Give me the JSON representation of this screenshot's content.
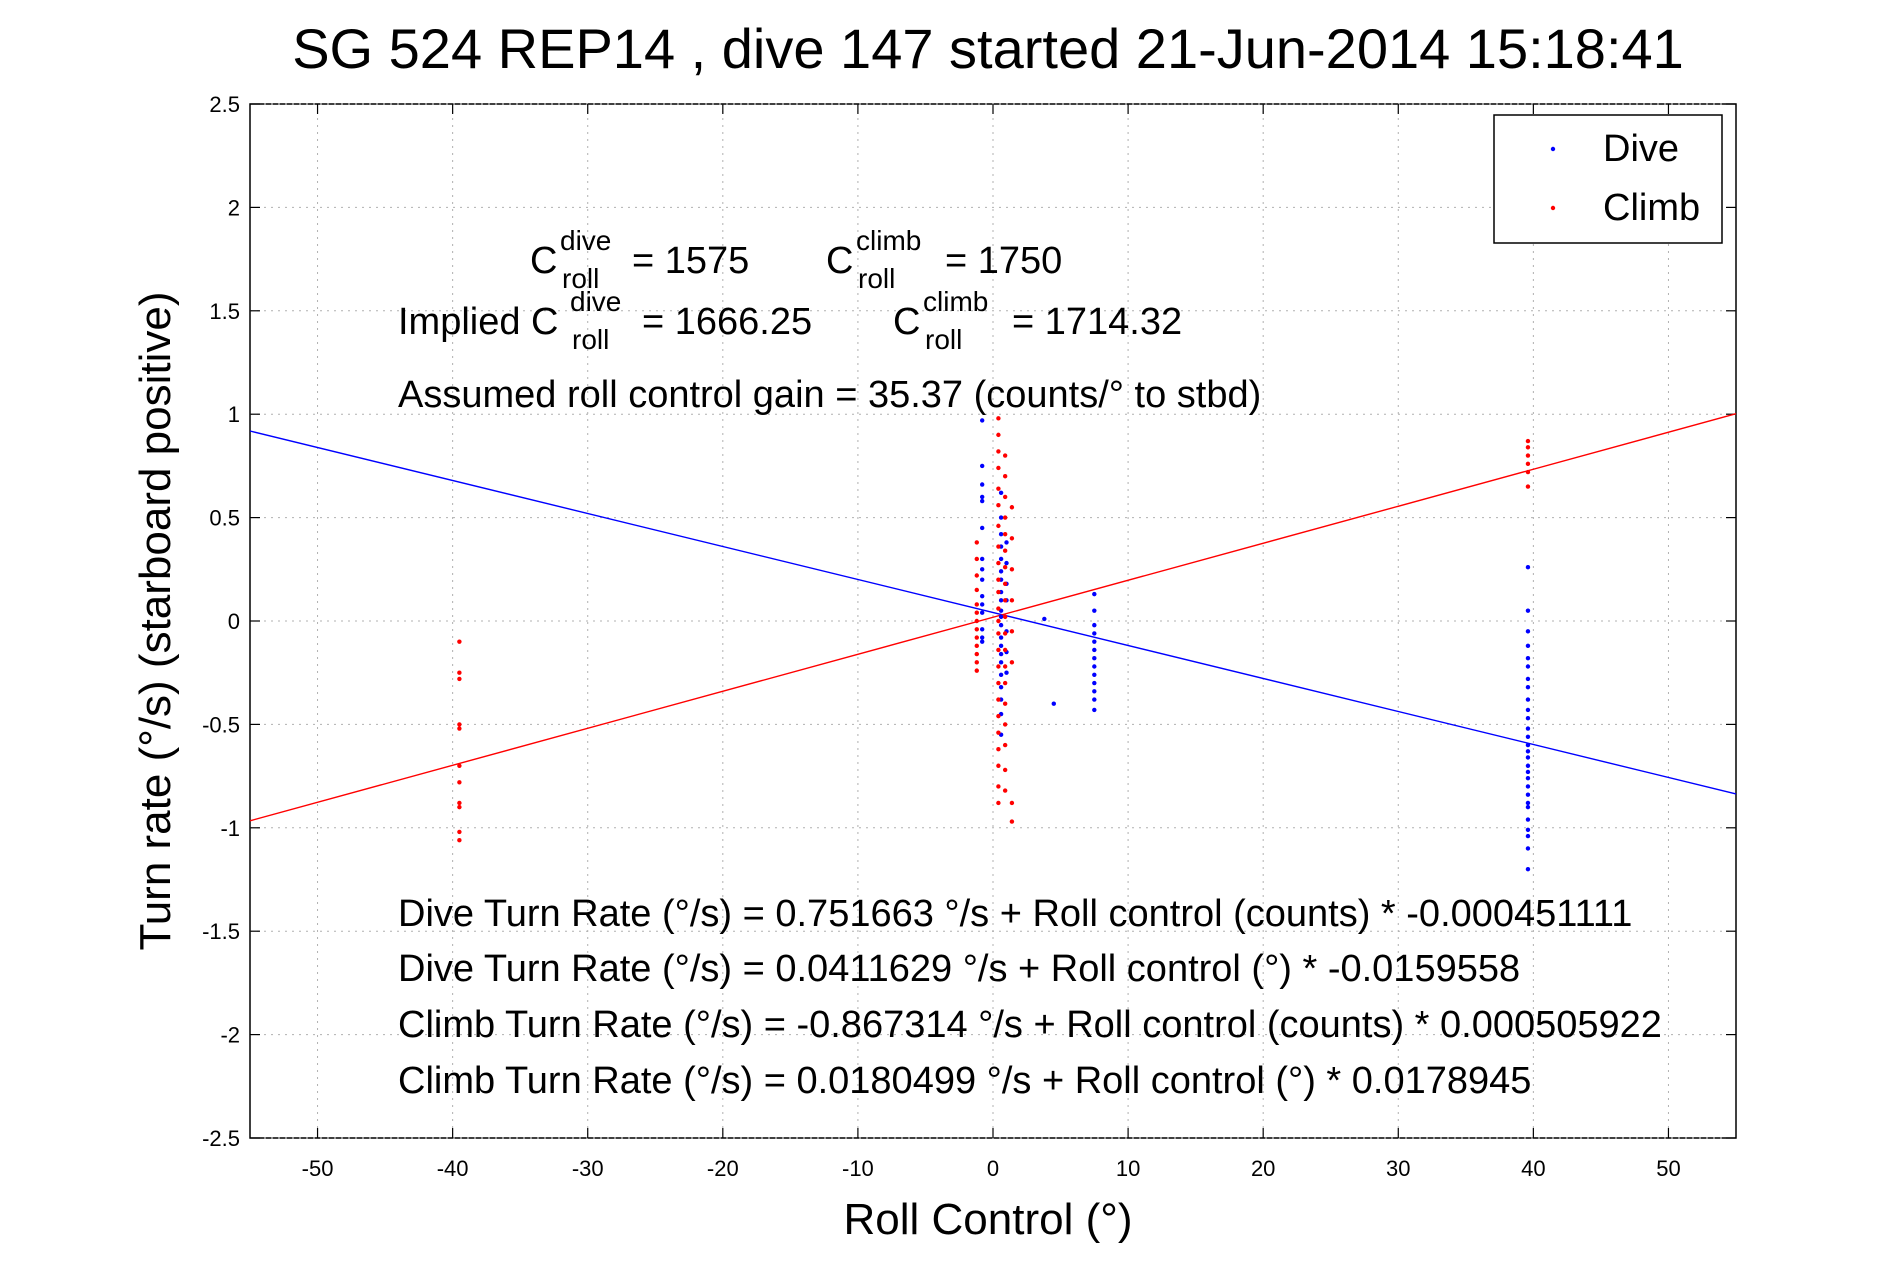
{
  "chart_data": {
    "type": "scatter",
    "title": "SG 524   REP14  , dive 147 started 21-Jun-2014 15:18:41",
    "xlabel": "Roll Control (°)",
    "ylabel": "Turn rate (°/s) (starboard positive)",
    "xlim": [
      -55,
      55
    ],
    "ylim": [
      -2.5,
      2.5
    ],
    "xticks": [
      "-50",
      "-40",
      "-30",
      "-20",
      "-10",
      "0",
      "10",
      "20",
      "30",
      "40",
      "50"
    ],
    "yticks": [
      "-2.5",
      "-2",
      "-1.5",
      "-1",
      "-0.5",
      "0",
      "0.5",
      "1",
      "1.5",
      "2",
      "2.5"
    ],
    "xtick_values": [
      -50,
      -40,
      -30,
      -20,
      -10,
      0,
      10,
      20,
      30,
      40,
      50
    ],
    "ytick_values": [
      -2.5,
      -2,
      -1.5,
      -1,
      -0.5,
      0,
      0.5,
      1,
      1.5,
      2,
      2.5
    ],
    "grid": true,
    "legend_placement": "top-right",
    "legend": [
      {
        "label": "Dive",
        "color": "#0000ff"
      },
      {
        "label": "Climb",
        "color": "#ff0000"
      }
    ],
    "annotations": {
      "c_roll_prefix": "C",
      "sup_dive": "dive",
      "sup_climb": "climb",
      "sub_roll": "roll",
      "c_dive_value": "= 1575",
      "c_climb_value": "= 1750",
      "implied_prefix": "Implied C",
      "implied_dive_value": "= 1666.25",
      "implied_climb_value": "= 1714.32",
      "gain": "Assumed roll control gain = 35.37 (counts/° to stbd)",
      "eq1": "Dive Turn Rate (°/s) = 0.751663 °/s + Roll control (counts) * -0.000451111",
      "eq2": "Dive Turn Rate (°/s) = 0.0411629 °/s + Roll control (°) * -0.0159558",
      "eq3": "Climb Turn Rate (°/s) = -0.867314 °/s + Roll control (counts) * 0.000505922",
      "eq4": "Climb Turn Rate (°/s) = 0.0180499 °/s + Roll control (°) * 0.0178945"
    },
    "fit_lines": [
      {
        "name": "Dive",
        "intercept": 0.0411629,
        "slope": -0.0159558,
        "color": "#0000ff"
      },
      {
        "name": "Climb",
        "intercept": 0.0180499,
        "slope": 0.0178945,
        "color": "#ff0000"
      }
    ],
    "series": [
      {
        "name": "Dive",
        "color": "#0000ff",
        "points": [
          [
            -0.8,
            0.97
          ],
          [
            -0.8,
            0.75
          ],
          [
            -0.8,
            0.6
          ],
          [
            -0.8,
            0.58
          ],
          [
            -0.8,
            0.45
          ],
          [
            -0.8,
            0.3
          ],
          [
            -0.8,
            0.25
          ],
          [
            -0.8,
            0.12
          ],
          [
            -0.8,
            0.08
          ],
          [
            -0.8,
            0.04
          ],
          [
            -0.8,
            -0.08
          ],
          [
            -0.8,
            -0.1
          ],
          [
            -0.8,
            0.66
          ],
          [
            -0.8,
            0.2
          ],
          [
            -0.8,
            -0.04
          ],
          [
            0.6,
            0.62
          ],
          [
            0.6,
            0.5
          ],
          [
            0.6,
            0.42
          ],
          [
            0.6,
            0.36
          ],
          [
            0.6,
            0.3
          ],
          [
            0.6,
            0.24
          ],
          [
            0.6,
            0.2
          ],
          [
            0.6,
            0.14
          ],
          [
            0.6,
            0.1
          ],
          [
            0.6,
            0.05
          ],
          [
            0.6,
            0.02
          ],
          [
            0.6,
            -0.02
          ],
          [
            0.6,
            -0.08
          ],
          [
            0.6,
            -0.12
          ],
          [
            0.6,
            -0.16
          ],
          [
            0.6,
            -0.2
          ],
          [
            0.6,
            -0.26
          ],
          [
            0.6,
            -0.32
          ],
          [
            0.6,
            -0.38
          ],
          [
            0.6,
            -0.45
          ],
          [
            0.6,
            -0.55
          ],
          [
            1.0,
            0.38
          ],
          [
            1.0,
            0.28
          ],
          [
            1.0,
            0.18
          ],
          [
            1.0,
            0.1
          ],
          [
            1.0,
            -0.05
          ],
          [
            1.0,
            -0.15
          ],
          [
            1.0,
            -0.25
          ],
          [
            3.8,
            0.01
          ],
          [
            4.5,
            -0.4
          ],
          [
            7.5,
            0.13
          ],
          [
            7.5,
            0.05
          ],
          [
            7.5,
            -0.02
          ],
          [
            7.5,
            -0.06
          ],
          [
            7.5,
            -0.1
          ],
          [
            7.5,
            -0.14
          ],
          [
            7.5,
            -0.18
          ],
          [
            7.5,
            -0.22
          ],
          [
            7.5,
            -0.26
          ],
          [
            7.5,
            -0.3
          ],
          [
            7.5,
            -0.34
          ],
          [
            7.5,
            -0.38
          ],
          [
            7.5,
            -0.43
          ],
          [
            39.6,
            0.26
          ],
          [
            39.6,
            0.05
          ],
          [
            39.6,
            -0.05
          ],
          [
            39.6,
            -0.12
          ],
          [
            39.6,
            -0.18
          ],
          [
            39.6,
            -0.22
          ],
          [
            39.6,
            -0.28
          ],
          [
            39.6,
            -0.32
          ],
          [
            39.6,
            -0.38
          ],
          [
            39.6,
            -0.43
          ],
          [
            39.6,
            -0.47
          ],
          [
            39.6,
            -0.52
          ],
          [
            39.6,
            -0.56
          ],
          [
            39.6,
            -0.6
          ],
          [
            39.6,
            -0.63
          ],
          [
            39.6,
            -0.66
          ],
          [
            39.6,
            -0.7
          ],
          [
            39.6,
            -0.73
          ],
          [
            39.6,
            -0.76
          ],
          [
            39.6,
            -0.8
          ],
          [
            39.6,
            -0.84
          ],
          [
            39.6,
            -0.88
          ],
          [
            39.6,
            -0.9
          ],
          [
            39.6,
            -0.96
          ],
          [
            39.6,
            -1.01
          ],
          [
            39.6,
            -1.04
          ],
          [
            39.6,
            -1.1
          ],
          [
            39.6,
            -1.2
          ]
        ]
      },
      {
        "name": "Climb",
        "color": "#ff0000",
        "points": [
          [
            -39.5,
            -0.1
          ],
          [
            -39.5,
            -0.25
          ],
          [
            -39.5,
            -0.28
          ],
          [
            -39.5,
            -0.5
          ],
          [
            -39.5,
            -0.52
          ],
          [
            -39.5,
            -0.7
          ],
          [
            -39.5,
            -0.78
          ],
          [
            -39.5,
            -0.88
          ],
          [
            -39.5,
            -0.9
          ],
          [
            -39.5,
            -1.02
          ],
          [
            -39.5,
            -1.06
          ],
          [
            -1.2,
            0.38
          ],
          [
            -1.2,
            0.3
          ],
          [
            -1.2,
            0.22
          ],
          [
            -1.2,
            0.15
          ],
          [
            -1.2,
            0.08
          ],
          [
            -1.2,
            0.04
          ],
          [
            -1.2,
            0.0
          ],
          [
            -1.2,
            -0.04
          ],
          [
            -1.2,
            -0.08
          ],
          [
            -1.2,
            -0.12
          ],
          [
            -1.2,
            -0.16
          ],
          [
            -1.2,
            -0.2
          ],
          [
            -1.2,
            -0.24
          ],
          [
            0.4,
            0.98
          ],
          [
            0.4,
            0.9
          ],
          [
            0.4,
            0.82
          ],
          [
            0.4,
            0.74
          ],
          [
            0.4,
            0.64
          ],
          [
            0.4,
            0.56
          ],
          [
            0.4,
            0.46
          ],
          [
            0.4,
            0.36
          ],
          [
            0.4,
            0.28
          ],
          [
            0.4,
            0.2
          ],
          [
            0.4,
            0.14
          ],
          [
            0.4,
            0.06
          ],
          [
            0.4,
            0.0
          ],
          [
            0.4,
            -0.06
          ],
          [
            0.4,
            -0.14
          ],
          [
            0.4,
            -0.22
          ],
          [
            0.4,
            -0.3
          ],
          [
            0.4,
            -0.38
          ],
          [
            0.4,
            -0.46
          ],
          [
            0.4,
            -0.54
          ],
          [
            0.4,
            -0.62
          ],
          [
            0.4,
            -0.7
          ],
          [
            0.4,
            -0.8
          ],
          [
            0.4,
            -0.88
          ],
          [
            0.9,
            0.8
          ],
          [
            0.9,
            0.7
          ],
          [
            0.9,
            0.6
          ],
          [
            0.9,
            0.5
          ],
          [
            0.9,
            0.42
          ],
          [
            0.9,
            0.34
          ],
          [
            0.9,
            0.26
          ],
          [
            0.9,
            0.18
          ],
          [
            0.9,
            0.1
          ],
          [
            0.9,
            0.02
          ],
          [
            0.9,
            -0.06
          ],
          [
            0.9,
            -0.14
          ],
          [
            0.9,
            -0.22
          ],
          [
            0.9,
            -0.3
          ],
          [
            0.9,
            -0.4
          ],
          [
            0.9,
            -0.5
          ],
          [
            0.9,
            -0.6
          ],
          [
            0.9,
            -0.72
          ],
          [
            0.9,
            -0.82
          ],
          [
            1.4,
            0.55
          ],
          [
            1.4,
            0.4
          ],
          [
            1.4,
            0.25
          ],
          [
            1.4,
            0.1
          ],
          [
            1.4,
            -0.05
          ],
          [
            1.4,
            -0.2
          ],
          [
            1.4,
            -0.88
          ],
          [
            1.4,
            -0.97
          ],
          [
            39.6,
            0.87
          ],
          [
            39.6,
            0.84
          ],
          [
            39.6,
            0.8
          ],
          [
            39.6,
            0.76
          ],
          [
            39.6,
            0.72
          ],
          [
            39.6,
            0.65
          ]
        ]
      }
    ]
  }
}
